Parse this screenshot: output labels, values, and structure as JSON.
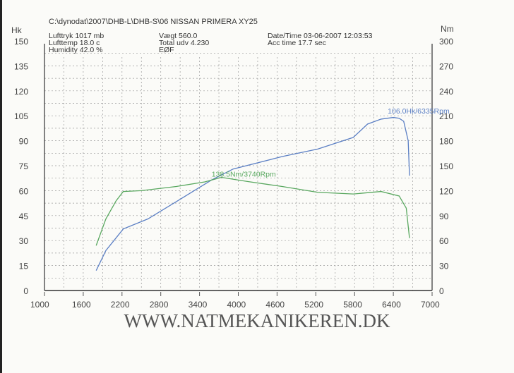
{
  "header": {
    "path": "C:\\dynodat\\2007\\DHB-L\\DHB-S\\06 NISSAN PRIMERA XY25",
    "col1": [
      "Lufttryk  1017 mb",
      "Lufttemp  18.0 c",
      "Humidity  42.0 %"
    ],
    "col2": [
      "Vægt    560.0",
      "Total udv 4.230",
      "EØF"
    ],
    "col3": [
      "Date/Time  03-06-2007 12:03:53",
      "Acc time  17.7 sec"
    ]
  },
  "website": "WWW.NATMEKANIKEREN.DK",
  "chart_data": {
    "type": "line",
    "xlim": [
      1000,
      7000
    ],
    "ylim_left": [
      0,
      150
    ],
    "ylim_right": [
      0,
      300
    ],
    "ylabel_left": "Hk",
    "ylabel_right": "Nm",
    "grid": true,
    "x_ticks": [
      1000,
      1600,
      2200,
      2800,
      3400,
      4000,
      4600,
      5200,
      5800,
      6400,
      7000
    ],
    "y_ticks_left": [
      0,
      15,
      30,
      45,
      60,
      75,
      90,
      105,
      120,
      135,
      150
    ],
    "y_ticks_right": [
      0,
      30,
      60,
      90,
      120,
      150,
      180,
      210,
      240,
      270,
      300
    ],
    "series": [
      {
        "axis": "left",
        "color": "#5b7fc4",
        "points": [
          [
            1800,
            12
          ],
          [
            1950,
            24
          ],
          [
            2220,
            37
          ],
          [
            2600,
            43
          ],
          [
            3150,
            56
          ],
          [
            3590,
            66.5
          ],
          [
            3920,
            73
          ],
          [
            4680,
            80.5
          ],
          [
            5230,
            85
          ],
          [
            5780,
            92
          ],
          [
            6000,
            100
          ],
          [
            6210,
            103
          ],
          [
            6400,
            104
          ],
          [
            6490,
            103.5
          ],
          [
            6560,
            101.7
          ],
          [
            6630,
            90
          ],
          [
            6650,
            69
          ]
        ]
      },
      {
        "axis": "right",
        "color": "#5aa860",
        "points": [
          [
            1800,
            54
          ],
          [
            1950,
            86
          ],
          [
            2110,
            108
          ],
          [
            2220,
            119
          ],
          [
            2500,
            120
          ],
          [
            3040,
            125
          ],
          [
            3480,
            130.5
          ],
          [
            3740,
            136
          ],
          [
            4140,
            131
          ],
          [
            4680,
            125
          ],
          [
            5230,
            118
          ],
          [
            5780,
            116
          ],
          [
            6210,
            119
          ],
          [
            6490,
            113.6
          ],
          [
            6600,
            99
          ],
          [
            6650,
            63
          ]
        ]
      }
    ],
    "annotations": [
      {
        "text": "106.0Hk/6335Rpm",
        "x": 6335,
        "y": 106,
        "axis": "left",
        "color": "#5b7fc4"
      },
      {
        "text": "138.5Nm/3740Rpm",
        "x": 3740,
        "y": 138.5,
        "axis": "right",
        "color": "#5aa860"
      }
    ]
  }
}
